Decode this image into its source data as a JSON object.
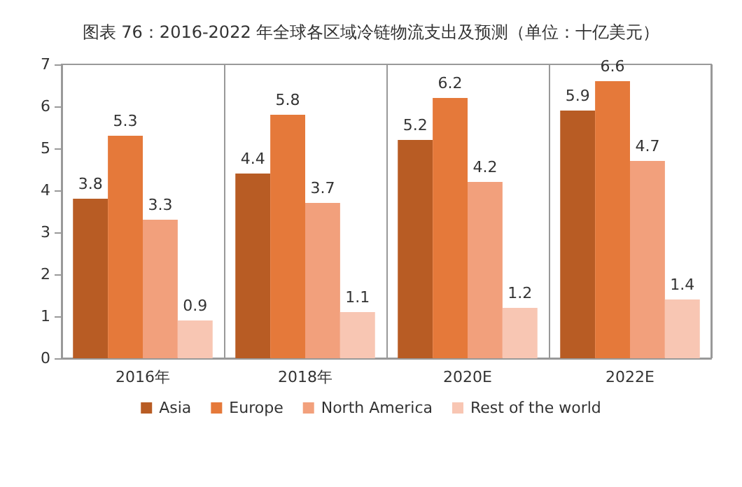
{
  "chart_data": {
    "type": "bar",
    "title": "图表 76：2016-2022 年全球各区域冷链物流支出及预测（单位：十亿美元）",
    "categories": [
      "2016年",
      "2018年",
      "2020E",
      "2022E"
    ],
    "series": [
      {
        "name": "Asia",
        "color": "#b85c24",
        "values": [
          3.8,
          4.4,
          5.2,
          5.9
        ]
      },
      {
        "name": "Europe",
        "color": "#e5793a",
        "values": [
          5.3,
          5.8,
          6.2,
          6.6
        ]
      },
      {
        "name": "North America",
        "color": "#f2a07c",
        "values": [
          3.3,
          3.7,
          4.2,
          4.7
        ]
      },
      {
        "name": "Rest of the world",
        "color": "#f8c6b3",
        "values": [
          0.9,
          1.1,
          1.2,
          1.4
        ]
      }
    ],
    "ylim": [
      0,
      7
    ],
    "yticks": [
      0,
      1,
      2,
      3,
      4,
      5,
      6,
      7
    ],
    "grid": "x",
    "legend": "bottom",
    "data_labels": true
  }
}
